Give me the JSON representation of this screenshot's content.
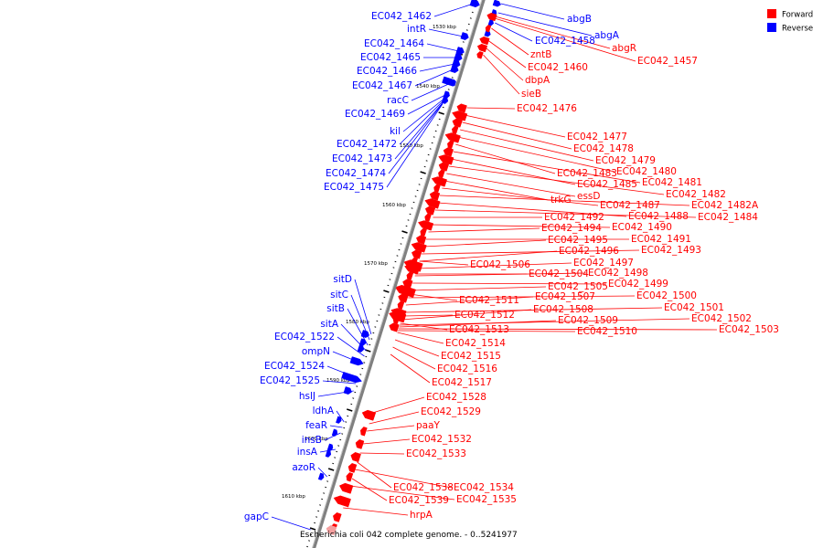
{
  "caption": "Escherichia coli 042 complete genome. - 0..5241977",
  "legend": [
    {
      "label": "Forward",
      "color": "#ff0000"
    },
    {
      "label": "Reverse",
      "color": "#0000ff"
    }
  ],
  "colors": {
    "forward": "#ff0000",
    "reverse": "#0000ff",
    "backbone": "#808080"
  },
  "ticks": [
    "1530 kbp",
    "1540 kbp",
    "1550 kbp",
    "1560 kbp",
    "1570 kbp",
    "1580 kbp",
    "1590 kbp",
    "1600 kbp",
    "1610 kbp"
  ],
  "reverse_genes": [
    "EC042_1462",
    "intR",
    "EC042_1464",
    "EC042_1465",
    "EC042_1466",
    "EC042_1467",
    "racC",
    "EC042_1469",
    "kil",
    "EC042_1472",
    "EC042_1473",
    "EC042_1474",
    "EC042_1475",
    "sitD",
    "sitC",
    "sitB",
    "sitA",
    "EC042_1522",
    "ompN",
    "EC042_1524",
    "EC042_1525",
    "hslJ",
    "ldhA",
    "feaR",
    "insB",
    "insA",
    "azoR",
    "gapC"
  ],
  "reverse_genes_right": [
    "abgB",
    "abgA",
    "EC042_1458"
  ],
  "forward_genes": [
    "abgR",
    "EC042_1457",
    "zntB",
    "EC042_1460",
    "dbpA",
    "sieB",
    "EC042_1476",
    "EC042_1477",
    "EC042_1478",
    "EC042_1479",
    "EC042_1480",
    "EC042_1483",
    "EC042_1481",
    "EC042_1485",
    "EC042_1482",
    "essD",
    "trkG",
    "EC042_1487",
    "EC042_1482A",
    "EC042_1488",
    "EC042_1484",
    "EC042_1492",
    "EC042_1490",
    "EC042_1494",
    "EC042_1491",
    "EC042_1495",
    "EC042_1493",
    "EC042_1496",
    "EC042_1497",
    "EC042_1506",
    "EC042_1498",
    "EC042_1504",
    "EC042_1499",
    "EC042_1505",
    "EC042_1500",
    "EC042_1511",
    "EC042_1507",
    "EC042_1501",
    "EC042_1508",
    "EC042_1512",
    "EC042_1502",
    "EC042_1509",
    "EC042_1503",
    "EC042_1513",
    "EC042_1510",
    "EC042_1514",
    "EC042_1515",
    "EC042_1516",
    "EC042_1517",
    "EC042_1528",
    "EC042_1529",
    "paaY",
    "EC042_1532",
    "EC042_1533",
    "EC042_1538",
    "EC042_1534",
    "EC042_1539",
    "EC042_1535",
    "hrpA"
  ]
}
